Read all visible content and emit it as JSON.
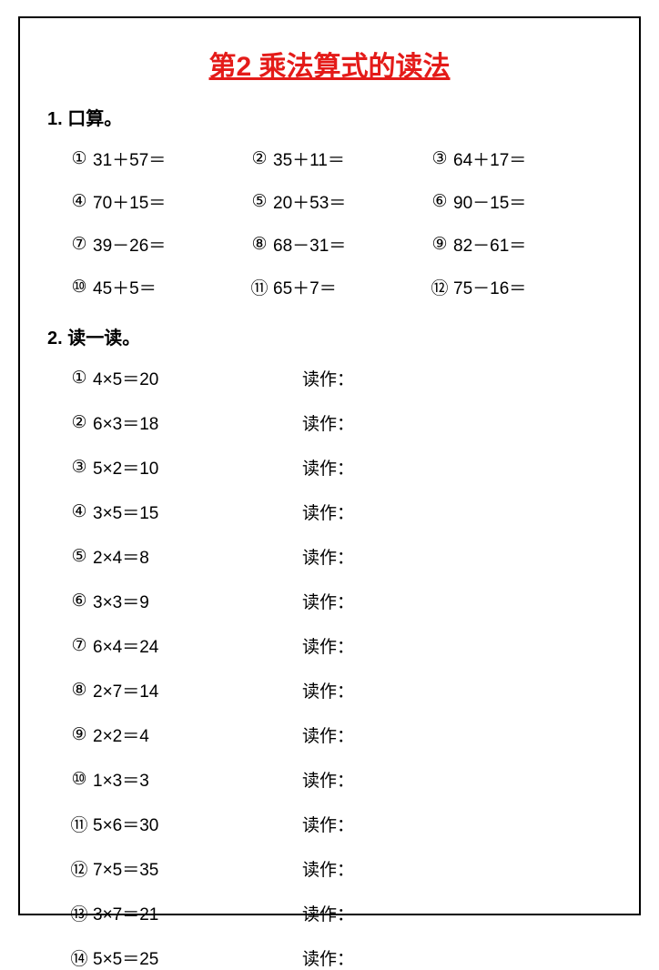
{
  "title": "第2  乘法算式的读法",
  "section1": {
    "heading": "1. 口算。",
    "circled": [
      "①",
      "②",
      "③",
      "④",
      "⑤",
      "⑥",
      "⑦",
      "⑧",
      "⑨",
      "⑩",
      "⑪",
      "⑫"
    ],
    "items": [
      "31＋57＝",
      "35＋11＝",
      "64＋17＝",
      "70＋15＝",
      "20＋53＝",
      "90－15＝",
      "39－26＝",
      "68－31＝",
      "82－61＝",
      "45＋5＝",
      "65＋7＝",
      "75－16＝"
    ]
  },
  "section2": {
    "heading": "2. 读一读。",
    "read_label": "读作：",
    "circled": [
      "①",
      "②",
      "③",
      "④",
      "⑤",
      "⑥",
      "⑦",
      "⑧",
      "⑨",
      "⑩",
      "⑪",
      "⑫",
      "⑬",
      "⑭"
    ],
    "items": [
      "4×5＝20",
      "6×3＝18",
      "5×2＝10",
      "3×5＝15",
      "2×4＝8",
      "3×3＝9",
      "6×4＝24",
      "2×7＝14",
      "2×2＝4",
      "1×3＝3",
      "5×6＝30",
      "7×5＝35",
      "3×7＝21",
      "5×5＝25"
    ]
  },
  "colors": {
    "title_color": "#e41b19",
    "text_color": "#000000",
    "border_color": "#000000",
    "background": "#ffffff"
  },
  "fonts": {
    "title_size": 30,
    "heading_size": 20,
    "body_size": 19
  }
}
